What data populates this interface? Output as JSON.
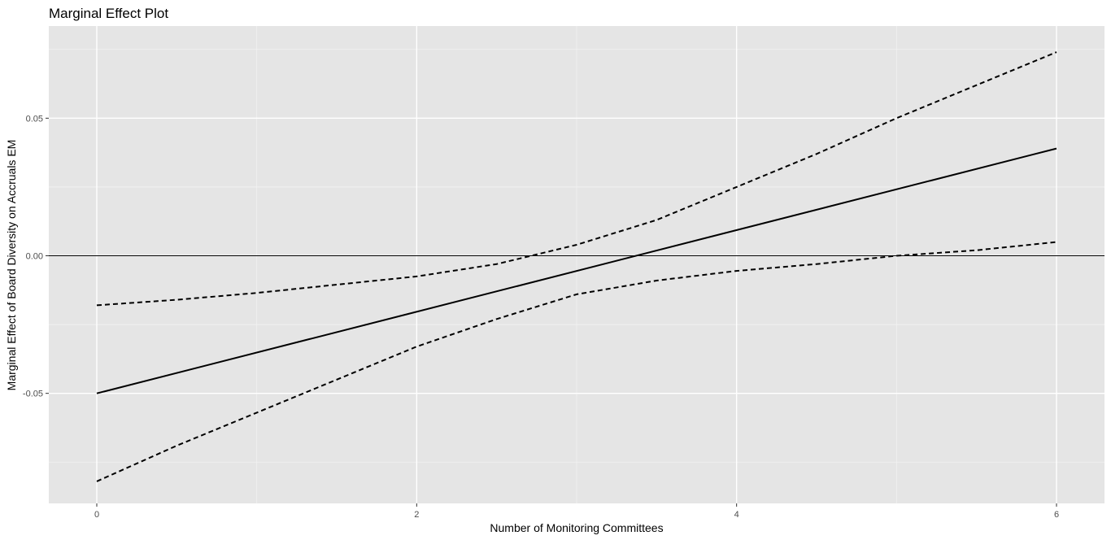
{
  "chart_data": {
    "type": "line",
    "title": "Marginal Effect Plot",
    "xlabel": "Number of Monitoring Committees",
    "ylabel": "Marginal Effect of Board Diversity on Accruals EM",
    "xlim": [
      -0.3,
      6.3
    ],
    "ylim": [
      -0.09,
      0.0835
    ],
    "x_ticks": [
      0,
      2,
      4,
      6
    ],
    "x_tick_labels": [
      "0",
      "2",
      "4",
      "6"
    ],
    "y_ticks": [
      -0.05,
      0.0,
      0.05
    ],
    "y_tick_labels": [
      "-0.05",
      "0.00",
      "0.05"
    ],
    "x_minor_grid": [
      1,
      3,
      5
    ],
    "y_minor_grid": [
      -0.075,
      -0.025,
      0.025,
      0.075
    ],
    "grid": true,
    "reference_line": {
      "y": 0.0,
      "color": "#000000"
    },
    "series": [
      {
        "role": "estimate",
        "style": "solid",
        "x": [
          0,
          6
        ],
        "y": [
          -0.05,
          0.039
        ]
      },
      {
        "role": "upper",
        "style": "dashed",
        "x": [
          0,
          0.5,
          1,
          1.5,
          2,
          2.5,
          3,
          3.5,
          4,
          4.5,
          5,
          5.5,
          6
        ],
        "y": [
          -0.018,
          -0.016,
          -0.0135,
          -0.0105,
          -0.0075,
          -0.003,
          0.004,
          0.013,
          0.025,
          0.037,
          0.05,
          0.062,
          0.074
        ]
      },
      {
        "role": "lower",
        "style": "dashed",
        "x": [
          0,
          0.5,
          1,
          1.5,
          2,
          2.5,
          3,
          3.5,
          4,
          4.5,
          5,
          5.5,
          6
        ],
        "y": [
          -0.082,
          -0.069,
          -0.057,
          -0.045,
          -0.033,
          -0.023,
          -0.014,
          -0.009,
          -0.0055,
          -0.003,
          0.0,
          0.002,
          0.005
        ]
      }
    ],
    "colors": {
      "panel_background": "#e5e5e5",
      "grid_major": "#ffffff",
      "grid_minor": "#f2f2f2",
      "line": "#000000",
      "tick_text": "#4d4d4d"
    }
  }
}
